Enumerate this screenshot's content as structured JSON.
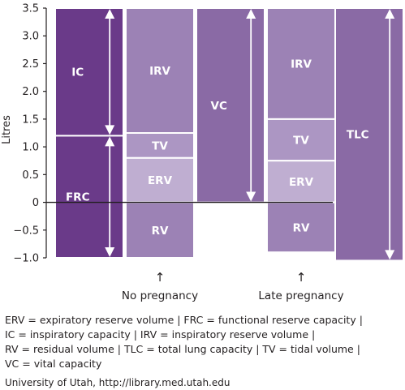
{
  "chart_data": {
    "type": "bar",
    "ylabel": "Litres",
    "ylim": [
      -1.0,
      3.5
    ],
    "yticks": [
      "3.5",
      "3.0",
      "2.5",
      "2.0",
      "1.5",
      "1.0",
      "0.5",
      "0",
      "−0.5",
      "−1.0"
    ],
    "ytick_values": [
      3.5,
      3.0,
      2.5,
      2.0,
      1.5,
      1.0,
      0.5,
      0,
      -0.5,
      -1.0
    ],
    "columns": [
      {
        "label": "",
        "segments": [
          {
            "name": "IC",
            "from": 1.2,
            "to": 3.5,
            "color": "#6a3a89",
            "arrow": true
          },
          {
            "name": "FRC",
            "from": -1.0,
            "to": 1.2,
            "color": "#6a3a89",
            "arrow": true
          }
        ]
      },
      {
        "label": "No pregnancy",
        "segments": [
          {
            "name": "IRV",
            "from": 1.25,
            "to": 3.5,
            "color": "#9c82b5"
          },
          {
            "name": "TV",
            "from": 0.8,
            "to": 1.25,
            "color": "#ac96c3"
          },
          {
            "name": "ERV",
            "from": 0,
            "to": 0.8,
            "color": "#bfaed1"
          },
          {
            "name": "RV",
            "from": -1.0,
            "to": 0,
            "color": "#9c82b5"
          }
        ]
      },
      {
        "label": "",
        "segments": [
          {
            "name": "VC",
            "from": 0,
            "to": 3.5,
            "color": "#8a6aa5",
            "arrow": true
          }
        ]
      },
      {
        "label": "Late pregnancy",
        "segments": [
          {
            "name": "IRV",
            "from": 1.5,
            "to": 3.5,
            "color": "#9c82b5"
          },
          {
            "name": "TV",
            "from": 0.75,
            "to": 1.5,
            "color": "#ac96c3"
          },
          {
            "name": "ERV",
            "from": 0,
            "to": 0.75,
            "color": "#bfaed1"
          },
          {
            "name": "RV",
            "from": -0.9,
            "to": 0,
            "color": "#9c82b5"
          }
        ]
      },
      {
        "label": "",
        "segments": [
          {
            "name": "TLC",
            "from": -1.05,
            "to": 3.5,
            "color": "#8a6aa5",
            "arrow": true
          }
        ]
      }
    ],
    "pointer_glyph": "↑"
  },
  "legend": {
    "line1": "ERV = expiratory reserve volume   |   FRC = functional reserve capacity   |",
    "line2": "IC = inspiratory capacity   |   IRV = inspiratory reserve volume   |",
    "line3": "RV = residual volume   |   TLC = total lung capacity   |   TV = tidal volume   |",
    "line4": "VC = vital capacity"
  },
  "source": "University of Utah, http://library.med.utah.edu"
}
